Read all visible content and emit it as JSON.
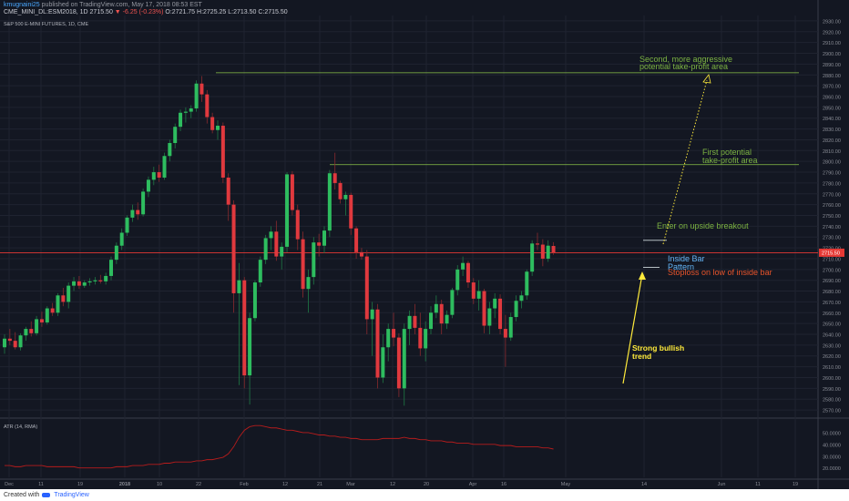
{
  "header": {
    "author_name": "kmugnaini25",
    "author_rest": "published on TradingView.com, May 17, 2018 08:53 EST",
    "ohlc_line": "CME_MINI_DL:ESM2018, 1D  2715.50",
    "change": "▼ -6.25 (-0.23%)",
    "ohlc_vals": "O:2721.75 H:2725.25 L:2713.50 C:2715.50"
  },
  "footer": {
    "created_with": "Created with",
    "brand": "TradingView"
  },
  "colors": {
    "up": "#26a69a",
    "down": "#ef5350",
    "up_candle": "#2ebd5f",
    "down_candle": "#e0393e",
    "level": "#8bc34a",
    "price_line": "#e53935",
    "annot_green": "#7cb342",
    "annot_yellow": "#ffeb3b",
    "annot_blue": "#64b5f6",
    "annot_red": "#e8542b",
    "atr": "#b71c1c"
  },
  "chart_data": {
    "type": "candlestick",
    "title": "S&P 500 E-MINI FUTURES, 1D, CME",
    "ylim": [
      2565,
      2935
    ],
    "y_ticks": [
      2570,
      2580,
      2590,
      2600,
      2610,
      2620,
      2630,
      2640,
      2650,
      2660,
      2670,
      2680,
      2690,
      2700,
      2710,
      2720,
      2730,
      2740,
      2750,
      2760,
      2770,
      2780,
      2790,
      2800,
      2810,
      2820,
      2830,
      2840,
      2850,
      2860,
      2870,
      2880,
      2890,
      2900,
      2910,
      2920,
      2930
    ],
    "y_tick_labels": [
      "2570.00",
      "2580.00",
      "2590.00",
      "2600.00",
      "2610.00",
      "2620.00",
      "2630.00",
      "2640.00",
      "2650.00",
      "2660.00",
      "2670.00",
      "2680.00",
      "2690.00",
      "2700.00",
      "2710.00",
      "2720.00",
      "2730.00",
      "2740.00",
      "2750.00",
      "2760.00",
      "2770.00",
      "2780.00",
      "2790.00",
      "2800.00",
      "2810.00",
      "2820.00",
      "2830.00",
      "2840.00",
      "2850.00",
      "2860.00",
      "2870.00",
      "2880.00",
      "2890.00",
      "2900.00",
      "2910.00",
      "2920.00",
      "2930.00"
    ],
    "last_price_label": "2715.50",
    "x_ticks": [
      "Dec",
      "11",
      "19",
      "2018",
      "10",
      "22",
      "Feb",
      "12",
      "21",
      "Mar",
      "12",
      "20",
      "Apr",
      "16",
      "May",
      "14",
      "Jun",
      "11",
      "19"
    ],
    "candles": [
      {
        "o": 2628,
        "h": 2640,
        "l": 2622,
        "c": 2636
      },
      {
        "o": 2636,
        "h": 2645,
        "l": 2630,
        "c": 2634
      },
      {
        "o": 2634,
        "h": 2642,
        "l": 2626,
        "c": 2628
      },
      {
        "o": 2628,
        "h": 2641,
        "l": 2625,
        "c": 2639
      },
      {
        "o": 2639,
        "h": 2647,
        "l": 2634,
        "c": 2645
      },
      {
        "o": 2645,
        "h": 2652,
        "l": 2638,
        "c": 2641
      },
      {
        "o": 2641,
        "h": 2657,
        "l": 2639,
        "c": 2654
      },
      {
        "o": 2654,
        "h": 2661,
        "l": 2647,
        "c": 2651
      },
      {
        "o": 2651,
        "h": 2666,
        "l": 2649,
        "c": 2664
      },
      {
        "o": 2664,
        "h": 2669,
        "l": 2657,
        "c": 2660
      },
      {
        "o": 2660,
        "h": 2678,
        "l": 2657,
        "c": 2676
      },
      {
        "o": 2676,
        "h": 2683,
        "l": 2666,
        "c": 2670
      },
      {
        "o": 2670,
        "h": 2688,
        "l": 2664,
        "c": 2685
      },
      {
        "o": 2685,
        "h": 2693,
        "l": 2680,
        "c": 2689
      },
      {
        "o": 2689,
        "h": 2694,
        "l": 2682,
        "c": 2685
      },
      {
        "o": 2685,
        "h": 2690,
        "l": 2683,
        "c": 2688
      },
      {
        "o": 2688,
        "h": 2692,
        "l": 2685,
        "c": 2689
      },
      {
        "o": 2689,
        "h": 2693,
        "l": 2686,
        "c": 2690
      },
      {
        "o": 2690,
        "h": 2695,
        "l": 2687,
        "c": 2689
      },
      {
        "o": 2689,
        "h": 2697,
        "l": 2686,
        "c": 2694
      },
      {
        "o": 2694,
        "h": 2712,
        "l": 2690,
        "c": 2709
      },
      {
        "o": 2709,
        "h": 2725,
        "l": 2705,
        "c": 2722
      },
      {
        "o": 2722,
        "h": 2738,
        "l": 2718,
        "c": 2734
      },
      {
        "o": 2734,
        "h": 2750,
        "l": 2731,
        "c": 2748
      },
      {
        "o": 2748,
        "h": 2760,
        "l": 2744,
        "c": 2755
      },
      {
        "o": 2755,
        "h": 2762,
        "l": 2746,
        "c": 2751
      },
      {
        "o": 2751,
        "h": 2775,
        "l": 2749,
        "c": 2772
      },
      {
        "o": 2772,
        "h": 2786,
        "l": 2767,
        "c": 2783
      },
      {
        "o": 2783,
        "h": 2795,
        "l": 2778,
        "c": 2790
      },
      {
        "o": 2790,
        "h": 2797,
        "l": 2781,
        "c": 2785
      },
      {
        "o": 2785,
        "h": 2808,
        "l": 2783,
        "c": 2805
      },
      {
        "o": 2805,
        "h": 2820,
        "l": 2800,
        "c": 2817
      },
      {
        "o": 2817,
        "h": 2835,
        "l": 2812,
        "c": 2832
      },
      {
        "o": 2832,
        "h": 2848,
        "l": 2828,
        "c": 2845
      },
      {
        "o": 2845,
        "h": 2850,
        "l": 2836,
        "c": 2846
      },
      {
        "o": 2846,
        "h": 2852,
        "l": 2840,
        "c": 2849
      },
      {
        "o": 2849,
        "h": 2875,
        "l": 2846,
        "c": 2872
      },
      {
        "o": 2872,
        "h": 2879,
        "l": 2855,
        "c": 2862
      },
      {
        "o": 2862,
        "h": 2866,
        "l": 2835,
        "c": 2841
      },
      {
        "o": 2841,
        "h": 2845,
        "l": 2826,
        "c": 2829
      },
      {
        "o": 2829,
        "h": 2838,
        "l": 2820,
        "c": 2833
      },
      {
        "o": 2833,
        "h": 2836,
        "l": 2780,
        "c": 2785
      },
      {
        "o": 2785,
        "h": 2789,
        "l": 2745,
        "c": 2760
      },
      {
        "o": 2760,
        "h": 2764,
        "l": 2660,
        "c": 2678
      },
      {
        "o": 2678,
        "h": 2706,
        "l": 2593,
        "c": 2690
      },
      {
        "o": 2690,
        "h": 2693,
        "l": 2590,
        "c": 2602
      },
      {
        "o": 2602,
        "h": 2660,
        "l": 2575,
        "c": 2655
      },
      {
        "o": 2655,
        "h": 2690,
        "l": 2652,
        "c": 2688
      },
      {
        "o": 2688,
        "h": 2712,
        "l": 2684,
        "c": 2709
      },
      {
        "o": 2709,
        "h": 2732,
        "l": 2705,
        "c": 2729
      },
      {
        "o": 2729,
        "h": 2740,
        "l": 2718,
        "c": 2735
      },
      {
        "o": 2735,
        "h": 2745,
        "l": 2708,
        "c": 2712
      },
      {
        "o": 2712,
        "h": 2725,
        "l": 2700,
        "c": 2721
      },
      {
        "o": 2721,
        "h": 2790,
        "l": 2716,
        "c": 2788
      },
      {
        "o": 2788,
        "h": 2791,
        "l": 2750,
        "c": 2755
      },
      {
        "o": 2755,
        "h": 2760,
        "l": 2718,
        "c": 2728
      },
      {
        "o": 2728,
        "h": 2735,
        "l": 2674,
        "c": 2682
      },
      {
        "o": 2682,
        "h": 2700,
        "l": 2660,
        "c": 2693
      },
      {
        "o": 2693,
        "h": 2730,
        "l": 2686,
        "c": 2725
      },
      {
        "o": 2725,
        "h": 2733,
        "l": 2712,
        "c": 2722
      },
      {
        "o": 2722,
        "h": 2740,
        "l": 2715,
        "c": 2736
      },
      {
        "o": 2736,
        "h": 2792,
        "l": 2730,
        "c": 2789
      },
      {
        "o": 2789,
        "h": 2808,
        "l": 2774,
        "c": 2780
      },
      {
        "o": 2780,
        "h": 2782,
        "l": 2761,
        "c": 2765
      },
      {
        "o": 2765,
        "h": 2772,
        "l": 2750,
        "c": 2769
      },
      {
        "o": 2769,
        "h": 2771,
        "l": 2732,
        "c": 2738
      },
      {
        "o": 2738,
        "h": 2740,
        "l": 2710,
        "c": 2716
      },
      {
        "o": 2716,
        "h": 2720,
        "l": 2709,
        "c": 2712
      },
      {
        "o": 2712,
        "h": 2718,
        "l": 2640,
        "c": 2654
      },
      {
        "o": 2654,
        "h": 2670,
        "l": 2620,
        "c": 2663
      },
      {
        "o": 2663,
        "h": 2668,
        "l": 2590,
        "c": 2600
      },
      {
        "o": 2600,
        "h": 2640,
        "l": 2595,
        "c": 2628
      },
      {
        "o": 2628,
        "h": 2650,
        "l": 2615,
        "c": 2645
      },
      {
        "o": 2645,
        "h": 2660,
        "l": 2629,
        "c": 2637
      },
      {
        "o": 2637,
        "h": 2641,
        "l": 2582,
        "c": 2590
      },
      {
        "o": 2590,
        "h": 2650,
        "l": 2574,
        "c": 2645
      },
      {
        "o": 2645,
        "h": 2662,
        "l": 2630,
        "c": 2657
      },
      {
        "o": 2657,
        "h": 2668,
        "l": 2640,
        "c": 2646
      },
      {
        "o": 2646,
        "h": 2660,
        "l": 2620,
        "c": 2627
      },
      {
        "o": 2627,
        "h": 2652,
        "l": 2615,
        "c": 2645
      },
      {
        "o": 2645,
        "h": 2666,
        "l": 2640,
        "c": 2660
      },
      {
        "o": 2660,
        "h": 2676,
        "l": 2655,
        "c": 2668
      },
      {
        "o": 2668,
        "h": 2672,
        "l": 2640,
        "c": 2650
      },
      {
        "o": 2650,
        "h": 2662,
        "l": 2645,
        "c": 2658
      },
      {
        "o": 2658,
        "h": 2683,
        "l": 2655,
        "c": 2681
      },
      {
        "o": 2681,
        "h": 2704,
        "l": 2676,
        "c": 2700
      },
      {
        "o": 2700,
        "h": 2712,
        "l": 2694,
        "c": 2706
      },
      {
        "o": 2706,
        "h": 2708,
        "l": 2683,
        "c": 2688
      },
      {
        "o": 2688,
        "h": 2692,
        "l": 2668,
        "c": 2673
      },
      {
        "o": 2673,
        "h": 2690,
        "l": 2662,
        "c": 2680
      },
      {
        "o": 2680,
        "h": 2682,
        "l": 2641,
        "c": 2648
      },
      {
        "o": 2648,
        "h": 2670,
        "l": 2640,
        "c": 2664
      },
      {
        "o": 2664,
        "h": 2678,
        "l": 2655,
        "c": 2673
      },
      {
        "o": 2673,
        "h": 2677,
        "l": 2640,
        "c": 2645
      },
      {
        "o": 2645,
        "h": 2658,
        "l": 2610,
        "c": 2637
      },
      {
        "o": 2637,
        "h": 2660,
        "l": 2634,
        "c": 2656
      },
      {
        "o": 2656,
        "h": 2676,
        "l": 2652,
        "c": 2671
      },
      {
        "o": 2671,
        "h": 2680,
        "l": 2664,
        "c": 2676
      },
      {
        "o": 2676,
        "h": 2700,
        "l": 2672,
        "c": 2698
      },
      {
        "o": 2698,
        "h": 2727,
        "l": 2694,
        "c": 2724
      },
      {
        "o": 2724,
        "h": 2734,
        "l": 2718,
        "c": 2723
      },
      {
        "o": 2723,
        "h": 2728,
        "l": 2703,
        "c": 2710
      },
      {
        "o": 2710,
        "h": 2727,
        "l": 2707,
        "c": 2722
      },
      {
        "o": 2721.75,
        "h": 2725.25,
        "l": 2713.5,
        "c": 2715.5
      }
    ],
    "levels": [
      {
        "name": "second take-profit",
        "value": 2882
      },
      {
        "name": "first take-profit",
        "value": 2797
      },
      {
        "name": "entry",
        "value": 2727
      },
      {
        "name": "stoploss",
        "value": 2702
      }
    ],
    "last_price": 2715.5,
    "annotations": [
      {
        "text": "Second, more aggressive",
        "color": "green"
      },
      {
        "text": "potential take-profit area",
        "color": "green"
      },
      {
        "text": "First potential",
        "color": "green"
      },
      {
        "text": "take-profit area",
        "color": "green"
      },
      {
        "text": "Enter on upside breakout",
        "color": "green"
      },
      {
        "text": "Inside Bar",
        "color": "blue"
      },
      {
        "text": "Pattern",
        "color": "blue"
      },
      {
        "text": "Stoploss on low of inside bar",
        "color": "red"
      },
      {
        "text": "Strong bullish",
        "color": "yellow"
      },
      {
        "text": "trend",
        "color": "yellow"
      }
    ],
    "atr": {
      "label": "ATR (14, RMA)",
      "ylim": [
        12,
        60
      ],
      "y_ticks": [
        20,
        30,
        40,
        50
      ],
      "y_tick_labels": [
        "20.0000",
        "30.0000",
        "40.0000",
        "50.0000"
      ],
      "values": [
        22,
        22,
        21,
        21,
        22,
        22,
        22,
        22,
        21,
        21,
        21,
        21,
        21,
        21,
        20,
        20,
        20,
        20,
        20,
        20,
        20,
        21,
        21,
        21,
        22,
        22,
        22,
        23,
        23,
        23,
        24,
        24,
        25,
        25,
        25,
        25,
        26,
        26,
        27,
        27,
        28,
        29,
        32,
        38,
        46,
        52,
        55,
        56,
        56,
        55,
        54,
        54,
        53,
        52,
        52,
        51,
        50,
        50,
        49,
        48,
        48,
        47,
        47,
        46,
        46,
        45,
        45,
        44,
        44,
        44,
        44,
        45,
        45,
        45,
        45,
        46,
        45,
        45,
        44,
        44,
        43,
        43,
        43,
        42,
        42,
        41,
        41,
        41,
        40,
        40,
        40,
        40,
        40,
        39,
        39,
        39,
        38,
        38,
        38,
        38,
        38,
        37,
        37,
        36
      ]
    }
  }
}
